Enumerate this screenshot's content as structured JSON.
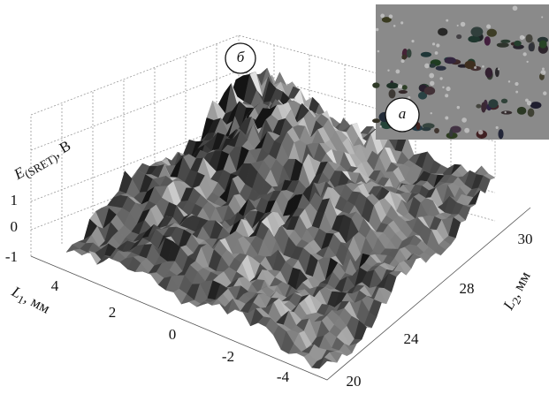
{
  "panel_labels": {
    "surface": "б",
    "photo": "а"
  },
  "z_axis": {
    "label_main": "E",
    "label_sub": "(SRET)",
    "label_unit": ", В",
    "ticks": [
      1,
      0,
      -1
    ]
  },
  "x_axis": {
    "label_main": "L",
    "label_sub": "1",
    "label_unit": ", мм",
    "ticks": [
      4,
      2,
      0,
      -2,
      -4
    ]
  },
  "y_axis": {
    "label_main": "L",
    "label_sub": "2",
    "label_unit": ", мм",
    "ticks": [
      20,
      24,
      28,
      30
    ]
  }
}
